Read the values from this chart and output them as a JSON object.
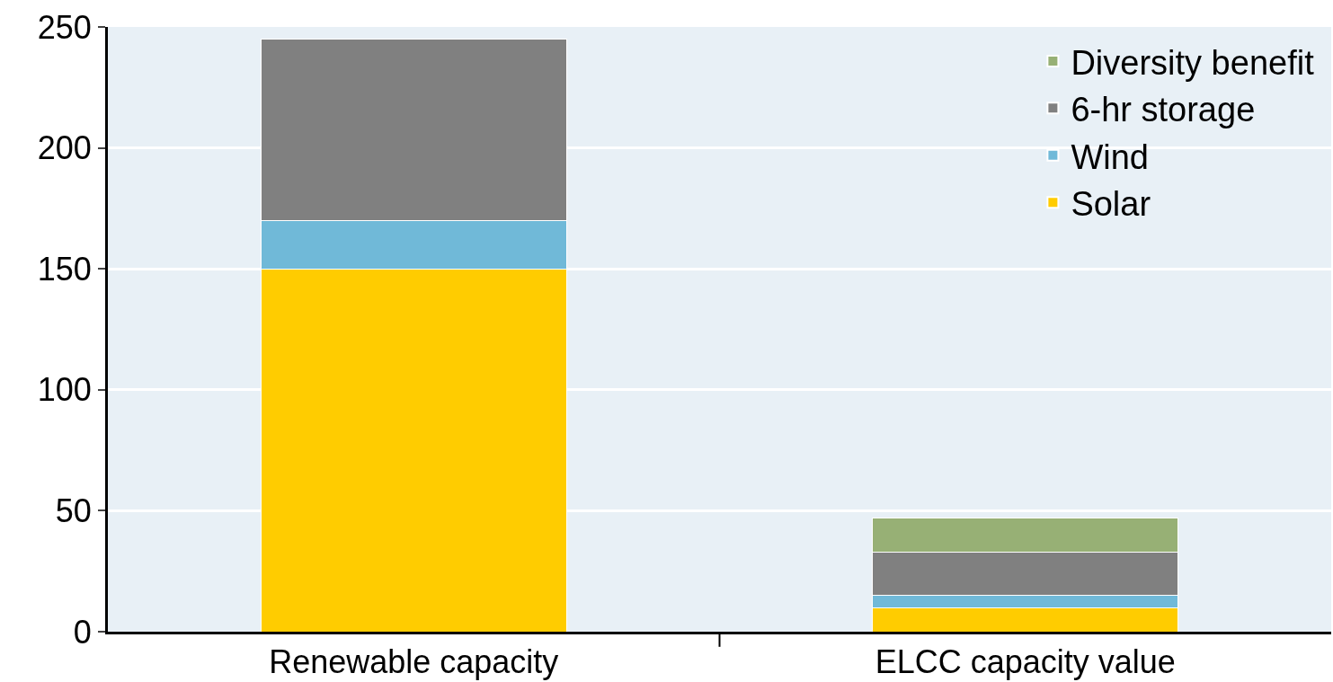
{
  "chart_data": {
    "type": "bar",
    "stacked": true,
    "categories": [
      "Renewable capacity",
      "ELCC capacity value"
    ],
    "series": [
      {
        "name": "Solar",
        "color": "#ffcc00",
        "values": [
          150,
          10
        ]
      },
      {
        "name": "Wind",
        "color": "#70b9d8",
        "values": [
          20,
          5
        ]
      },
      {
        "name": "6-hr storage",
        "color": "#808080",
        "values": [
          75,
          18
        ]
      },
      {
        "name": "Diversity benefit",
        "color": "#97b075",
        "values": [
          null,
          14
        ]
      }
    ],
    "ylim": [
      0,
      250
    ],
    "yticks": [
      0,
      50,
      100,
      150,
      200,
      250
    ],
    "grid": "y",
    "legend": "top right"
  }
}
